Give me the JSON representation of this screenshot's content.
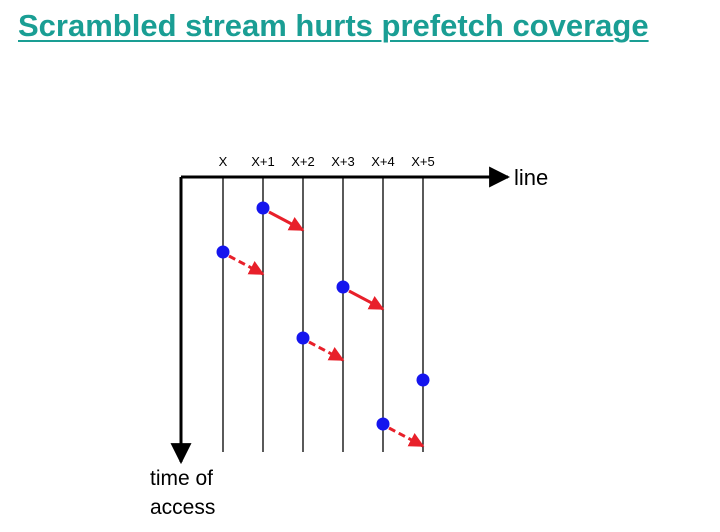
{
  "title": "Scrambled stream hurts prefetch coverage",
  "diagram": {
    "column_labels": [
      "X",
      "X+1",
      "X+2",
      "X+3",
      "X+4",
      "X+5"
    ],
    "x_axis_label": "line",
    "y_axis_label_line1": "time of",
    "y_axis_label_line2": "access",
    "access_point_color": "#1515ee",
    "prefetch_arrow_color": "#e8202a",
    "accesses": [
      {
        "line": "X+1",
        "order": 1,
        "prefetch": "solid"
      },
      {
        "line": "X",
        "order": 2,
        "prefetch": "dashed"
      },
      {
        "line": "X+3",
        "order": 3,
        "prefetch": "solid"
      },
      {
        "line": "X+2",
        "order": 4,
        "prefetch": "dashed"
      },
      {
        "line": "X+5",
        "order": 5,
        "prefetch": "none"
      },
      {
        "line": "X+4",
        "order": 6,
        "prefetch": "dashed"
      }
    ]
  }
}
